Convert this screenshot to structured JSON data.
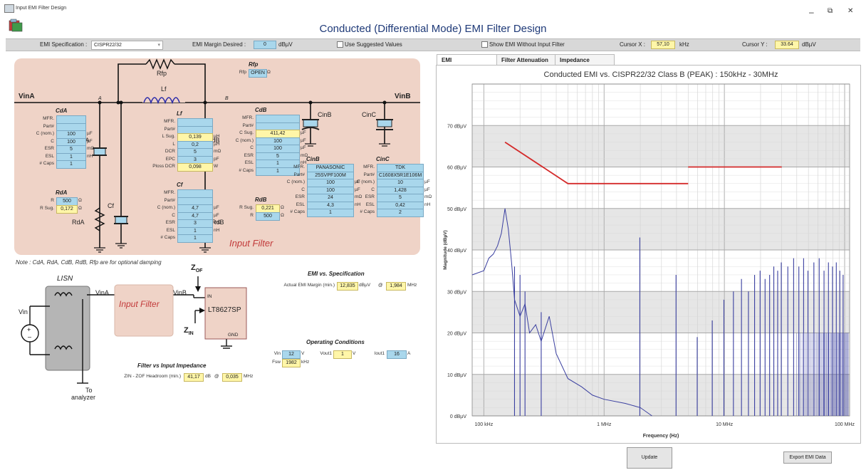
{
  "window": {
    "title": "Input EMI Filter Design",
    "minimize": "–",
    "restore": "⧉",
    "close": "✕"
  },
  "header": {
    "title": "Conducted (Differential Mode) EMI Filter Design"
  },
  "toolbar": {
    "emi_spec_label": "EMI Specification :",
    "emi_spec_value": "CISPR22/32",
    "margin_label": "EMI Margin Desired :",
    "margin_value": "0",
    "margin_unit": "dBµV",
    "use_suggested": "Use Suggested Values",
    "show_without": "Show EMI Without Input Filter",
    "cursor_x_label": "Cursor X :",
    "cursor_x_value": "57,10",
    "cursor_x_unit": "kHz",
    "cursor_y_label": "Cursor Y :",
    "cursor_y_value": "33.64",
    "cursor_y_unit": "dBµV"
  },
  "filter": {
    "vina": "VinA",
    "vinb": "VinB",
    "node_a": "A",
    "node_b": "B",
    "rfp_name": "Rfp",
    "lf_name": "Lf",
    "cda_name": "CdA",
    "cdb_name": "CdB",
    "cf_name": "Cf",
    "rda_name": "RdA",
    "rdb_name": "RdB",
    "cinb_name": "CinB",
    "cinc_name": "CinC",
    "input_filter_label": "Input Filter",
    "rfp": {
      "title": "Rfp",
      "label": "Rfp",
      "value": "OPEN",
      "unit": "Ω"
    },
    "cda": {
      "title": "CdA",
      "rows": [
        {
          "label": "MFR.",
          "value": "",
          "unit": "",
          "style": "blue"
        },
        {
          "label": "Part#",
          "value": "",
          "unit": "",
          "style": "blue"
        },
        {
          "label": "C (nom.)",
          "value": "100",
          "unit": "µF",
          "style": "blue"
        },
        {
          "label": "C",
          "value": "100",
          "unit": "µF",
          "style": "blue"
        },
        {
          "label": "ESR",
          "value": "5",
          "unit": "mΩ",
          "style": "blue"
        },
        {
          "label": "ESL",
          "value": "1",
          "unit": "nH",
          "style": "blue"
        },
        {
          "label": "# Caps",
          "value": "1",
          "unit": "",
          "style": "blue"
        }
      ]
    },
    "rda": {
      "title": "RdA",
      "rows": [
        {
          "label": "R",
          "value": "500",
          "unit": "Ω",
          "style": "blue"
        },
        {
          "label": "R Sug.",
          "value": "0,172",
          "unit": "Ω",
          "style": "yel"
        }
      ]
    },
    "lf": {
      "title": "Lf",
      "rows": [
        {
          "label": "MFR.",
          "value": "",
          "unit": "",
          "style": "blue"
        },
        {
          "label": "Part#",
          "value": "",
          "unit": "",
          "style": "blue"
        },
        {
          "label": "L Sug.",
          "value": "0,139",
          "unit": "µH",
          "style": "yel"
        },
        {
          "label": "L",
          "value": "0,2",
          "unit": "µH",
          "style": "blue"
        },
        {
          "label": "DCR",
          "value": "5",
          "unit": "mΩ",
          "style": "blue"
        },
        {
          "label": "EPC",
          "value": "3",
          "unit": "pF",
          "style": "blue"
        },
        {
          "label": "Ploss DCR",
          "value": "0,098",
          "unit": "W",
          "style": "yel"
        }
      ]
    },
    "cf": {
      "title": "Cf",
      "rows": [
        {
          "label": "MFR.",
          "value": "",
          "unit": "",
          "style": "blue"
        },
        {
          "label": "Part#",
          "value": "",
          "unit": "",
          "style": "blue"
        },
        {
          "label": "C (nom.)",
          "value": "4,7",
          "unit": "µF",
          "style": "blue"
        },
        {
          "label": "C",
          "value": "4,7",
          "unit": "µF",
          "style": "blue"
        },
        {
          "label": "ESR",
          "value": "3",
          "unit": "mΩ",
          "style": "blue"
        },
        {
          "label": "ESL",
          "value": "1",
          "unit": "nH",
          "style": "blue"
        },
        {
          "label": "# Caps",
          "value": "1",
          "unit": "",
          "style": "blue"
        }
      ]
    },
    "cdb": {
      "title": "CdB",
      "rows": [
        {
          "label": "MFR.",
          "value": "",
          "unit": "",
          "style": "blue"
        },
        {
          "label": "Part#",
          "value": "",
          "unit": "",
          "style": "blue"
        },
        {
          "label": "C Sug.",
          "value": "411,42",
          "unit": "µF",
          "style": "yel"
        },
        {
          "label": "C (nom.)",
          "value": "100",
          "unit": "µF",
          "style": "blue"
        },
        {
          "label": "C",
          "value": "100",
          "unit": "µF",
          "style": "blue"
        },
        {
          "label": "ESR",
          "value": "5",
          "unit": "mΩ",
          "style": "blue"
        },
        {
          "label": "ESL",
          "value": "1",
          "unit": "nH",
          "style": "blue"
        },
        {
          "label": "# Caps",
          "value": "1",
          "unit": "",
          "style": "blue"
        }
      ]
    },
    "rdb": {
      "title": "RdB",
      "rows": [
        {
          "label": "R Sug.",
          "value": "0,221",
          "unit": "Ω",
          "style": "yel"
        },
        {
          "label": "R",
          "value": "500",
          "unit": "Ω",
          "style": "blue"
        }
      ]
    },
    "cinb": {
      "title": "CinB",
      "rows": [
        {
          "label": "MFR.",
          "value": "PANASONIC",
          "unit": "",
          "style": "blue"
        },
        {
          "label": "Part#",
          "value": "25SVPF100M",
          "unit": "",
          "style": "blue"
        },
        {
          "label": "C (nom.)",
          "value": "100",
          "unit": "µF",
          "style": "blue"
        },
        {
          "label": "C",
          "value": "100",
          "unit": "µF",
          "style": "blue"
        },
        {
          "label": "ESR",
          "value": "24",
          "unit": "mΩ",
          "style": "blue"
        },
        {
          "label": "ESL",
          "value": "4,3",
          "unit": "nH",
          "style": "blue"
        },
        {
          "label": "# Caps",
          "value": "1",
          "unit": "",
          "style": "blue"
        }
      ]
    },
    "cinc": {
      "title": "CinC",
      "rows": [
        {
          "label": "MFR.",
          "value": "TDK",
          "unit": "",
          "style": "blue"
        },
        {
          "label": "Part#",
          "value": "C1608X5R1E106M",
          "unit": "",
          "style": "blue"
        },
        {
          "label": "C (nom.)",
          "value": "10",
          "unit": "µF",
          "style": "blue"
        },
        {
          "label": "C",
          "value": "1,428",
          "unit": "µF",
          "style": "blue"
        },
        {
          "label": "ESR",
          "value": "5",
          "unit": "mΩ",
          "style": "blue"
        },
        {
          "label": "ESL",
          "value": "0,42",
          "unit": "nH",
          "style": "blue"
        },
        {
          "label": "# Caps",
          "value": "2",
          "unit": "",
          "style": "blue"
        }
      ]
    }
  },
  "note": "Note : CdA, RdA, CdB, RdB, Rfp are for optional damping",
  "lower": {
    "lisn": "LISN",
    "vin": "Vin",
    "vina": "VinA",
    "vinb": "VinB",
    "input_filter": "Input Filter",
    "ic": "LT8627SP",
    "pin_in": "IN",
    "pin_gnd": "GND",
    "zof": "Z",
    "zof_sub": "OF",
    "zin": "Z",
    "zin_sub": "IN",
    "to_analyzer_1": "To",
    "to_analyzer_2": "analyzer"
  },
  "emi_spec": {
    "title": "EMI vs. Specification",
    "label": "Actual EMI Margin (min.)",
    "value": "12,835",
    "unit": "dBµV",
    "at": "@",
    "freq": "1,984",
    "freq_unit": "MHz"
  },
  "operating": {
    "title": "Operating Conditions",
    "vin_label": "Vin",
    "vin": "12",
    "vin_unit": "V",
    "vout_label": "Vout1",
    "vout": "1",
    "vout_unit": "V",
    "iout_label": "Iout1",
    "iout": "16",
    "iout_unit": "A",
    "fsw_label": "Fsw",
    "fsw": "1982",
    "fsw_unit": "kHz"
  },
  "impedance": {
    "title": "Filter vs Input Impedance",
    "label": "ZIN - ZOF Headroom (min.)",
    "value": "41,17",
    "unit": "dB",
    "at": "@",
    "freq": "0,035",
    "freq_unit": "MHz"
  },
  "tabs": [
    "EMI",
    "Filter Attenuation",
    "Impedance"
  ],
  "buttons": {
    "update": "Update",
    "export": "Export EMI Data"
  },
  "chart_data": {
    "type": "line",
    "title": "Conducted EMI vs. CISPR22/32 Class B (PEAK) : 150kHz - 30MHz",
    "xlabel": "Frequency (Hz)",
    "ylabel": "Magnitude (dBµV)",
    "x_scale": "log",
    "xlim": [
      80000,
      110000000
    ],
    "ylim": [
      0,
      80
    ],
    "xticks": [
      {
        "v": 100000,
        "label": "100 kHz"
      },
      {
        "v": 1000000,
        "label": "1 MHz"
      },
      {
        "v": 10000000,
        "label": "10 MHz"
      },
      {
        "v": 100000000,
        "label": "100 MHz"
      }
    ],
    "yticks": [
      {
        "v": 0,
        "label": "0 dBµV"
      },
      {
        "v": 10,
        "label": "10 dBµV"
      },
      {
        "v": 20,
        "label": "20 dBµV"
      },
      {
        "v": 30,
        "label": "30 dBµV"
      },
      {
        "v": 40,
        "label": "40 dBµV"
      },
      {
        "v": 50,
        "label": "50 dBµV"
      },
      {
        "v": 60,
        "label": "60 dBµV"
      },
      {
        "v": 70,
        "label": "70 dBµV"
      }
    ],
    "grid": true,
    "colors": {
      "limit": "#d42a2a",
      "emi": "#3a3fa0",
      "band": "#e6e6e6"
    },
    "limit_series": [
      {
        "name": "limit",
        "x": [
          150000,
          500000,
          5000000
        ],
        "y": [
          66,
          56,
          56
        ]
      },
      {
        "name": "limit",
        "x": [
          5000000,
          30000000
        ],
        "y": [
          60,
          60
        ]
      }
    ],
    "emi_trace": {
      "x": [
        80000,
        100000,
        110000,
        120000,
        130000,
        140000,
        150000,
        160000,
        170000,
        180000,
        200000,
        220000,
        240000,
        270000,
        300000,
        350000,
        400000,
        500000,
        650000,
        800000,
        1000000,
        1500000,
        2000000,
        2500000
      ],
      "y": [
        34,
        35,
        38,
        39,
        41,
        44,
        50,
        45,
        37,
        28,
        24,
        27,
        20,
        22,
        18,
        24,
        15,
        9,
        7,
        5,
        4,
        3,
        2,
        0
      ]
    },
    "spikes": [
      {
        "x": 180000,
        "y": 36
      },
      {
        "x": 200000,
        "y": 34
      },
      {
        "x": 220000,
        "y": 30
      },
      {
        "x": 300000,
        "y": 25
      },
      {
        "x": 1982000,
        "y": 43
      },
      {
        "x": 3964000,
        "y": 34
      },
      {
        "x": 5946000,
        "y": 19
      },
      {
        "x": 7928000,
        "y": 23
      },
      {
        "x": 9910000,
        "y": 28
      },
      {
        "x": 11892000,
        "y": 30
      },
      {
        "x": 13874000,
        "y": 33
      },
      {
        "x": 15856000,
        "y": 30
      },
      {
        "x": 17838000,
        "y": 34
      },
      {
        "x": 19820000,
        "y": 35
      },
      {
        "x": 21802000,
        "y": 33
      },
      {
        "x": 23784000,
        "y": 34
      },
      {
        "x": 25766000,
        "y": 36
      },
      {
        "x": 27748000,
        "y": 35
      },
      {
        "x": 29730000,
        "y": 37
      },
      {
        "x": 33694000,
        "y": 36
      },
      {
        "x": 37658000,
        "y": 38
      },
      {
        "x": 41622000,
        "y": 36
      },
      {
        "x": 45586000,
        "y": 38
      },
      {
        "x": 49550000,
        "y": 35
      },
      {
        "x": 55496000,
        "y": 37
      },
      {
        "x": 61442000,
        "y": 38
      },
      {
        "x": 67388000,
        "y": 35
      },
      {
        "x": 73334000,
        "y": 37
      },
      {
        "x": 79280000,
        "y": 36
      },
      {
        "x": 85226000,
        "y": 37
      },
      {
        "x": 91172000,
        "y": 35
      },
      {
        "x": 97118000,
        "y": 34
      }
    ]
  }
}
